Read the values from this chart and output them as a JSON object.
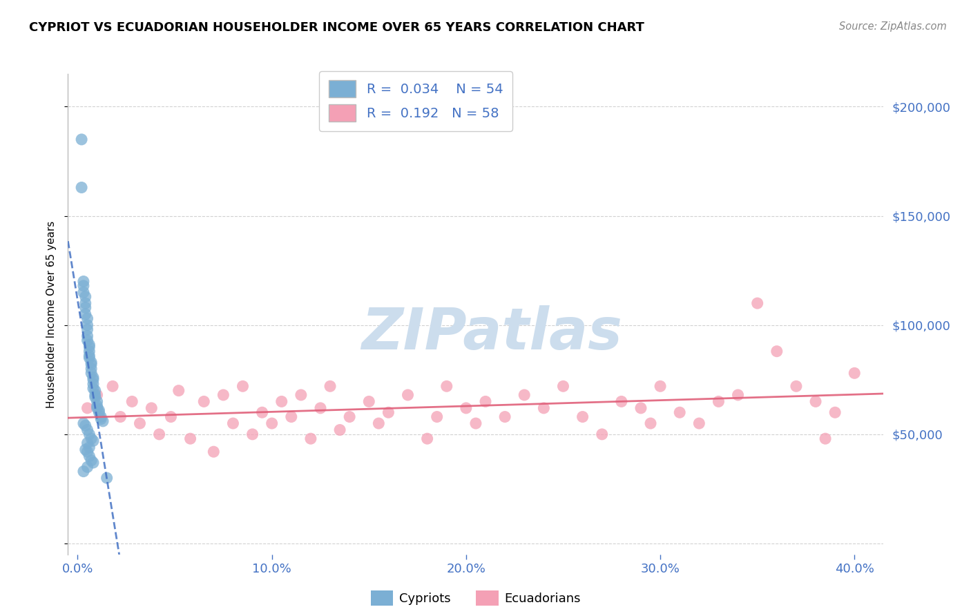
{
  "title": "CYPRIOT VS ECUADORIAN HOUSEHOLDER INCOME OVER 65 YEARS CORRELATION CHART",
  "source": "Source: ZipAtlas.com",
  "ylabel": "Householder Income Over 65 years",
  "yticks": [
    0,
    50000,
    100000,
    150000,
    200000
  ],
  "ytick_labels": [
    "",
    "$50,000",
    "$100,000",
    "$150,000",
    "$200,000"
  ],
  "ylim": [
    -5000,
    215000
  ],
  "xlim": [
    -0.5,
    41.5
  ],
  "xticks": [
    0,
    10,
    20,
    30,
    40
  ],
  "xtick_labels": [
    "0.0%",
    "10.0%",
    "20.0%",
    "30.0%",
    "40.0%"
  ],
  "cypriot_R": "0.034",
  "cypriot_N": "54",
  "ecuadorian_R": "0.192",
  "ecuadorian_N": "58",
  "cypriot_color": "#7bafd4",
  "ecuadorian_color": "#f4a0b5",
  "cypriot_line_color": "#4472c4",
  "ecuadorian_line_color": "#e0607a",
  "label_color": "#4472c4",
  "watermark_color": "#ccdded",
  "background_color": "#ffffff",
  "cypriot_x": [
    0.2,
    0.2,
    0.3,
    0.3,
    0.3,
    0.4,
    0.4,
    0.4,
    0.4,
    0.5,
    0.5,
    0.5,
    0.5,
    0.5,
    0.6,
    0.6,
    0.6,
    0.6,
    0.6,
    0.7,
    0.7,
    0.7,
    0.7,
    0.8,
    0.8,
    0.8,
    0.8,
    0.9,
    0.9,
    0.9,
    1.0,
    1.0,
    1.0,
    1.1,
    1.1,
    1.2,
    1.2,
    1.3,
    0.3,
    0.4,
    0.5,
    0.6,
    0.7,
    0.8,
    0.5,
    0.6,
    0.4,
    0.5,
    0.6,
    0.7,
    0.8,
    0.5,
    0.3,
    1.5
  ],
  "cypriot_y": [
    185000,
    163000,
    120000,
    118000,
    115000,
    113000,
    110000,
    108000,
    105000,
    103000,
    100000,
    98000,
    95000,
    93000,
    91000,
    90000,
    88000,
    86000,
    85000,
    83000,
    82000,
    80000,
    78000,
    76000,
    75000,
    73000,
    71000,
    70000,
    68000,
    67000,
    65000,
    63000,
    62000,
    61000,
    60000,
    58000,
    57000,
    56000,
    55000,
    54000,
    52000,
    50000,
    48000,
    47000,
    46000,
    44000,
    43000,
    42000,
    40000,
    38000,
    37000,
    35000,
    33000,
    30000
  ],
  "ecuadorian_x": [
    0.5,
    1.0,
    1.8,
    2.2,
    2.8,
    3.2,
    3.8,
    4.2,
    4.8,
    5.2,
    5.8,
    6.5,
    7.0,
    7.5,
    8.0,
    8.5,
    9.0,
    9.5,
    10.0,
    10.5,
    11.0,
    11.5,
    12.0,
    12.5,
    13.0,
    13.5,
    14.0,
    15.0,
    15.5,
    16.0,
    17.0,
    18.0,
    18.5,
    19.0,
    20.0,
    20.5,
    21.0,
    22.0,
    23.0,
    24.0,
    25.0,
    26.0,
    27.0,
    28.0,
    29.0,
    30.0,
    31.0,
    32.0,
    33.0,
    34.0,
    35.0,
    36.0,
    37.0,
    38.0,
    39.0,
    40.0,
    38.5,
    29.5
  ],
  "ecuadorian_y": [
    62000,
    68000,
    72000,
    58000,
    65000,
    55000,
    62000,
    50000,
    58000,
    70000,
    48000,
    65000,
    42000,
    68000,
    55000,
    72000,
    50000,
    60000,
    55000,
    65000,
    58000,
    68000,
    48000,
    62000,
    72000,
    52000,
    58000,
    65000,
    55000,
    60000,
    68000,
    48000,
    58000,
    72000,
    62000,
    55000,
    65000,
    58000,
    68000,
    62000,
    72000,
    58000,
    50000,
    65000,
    62000,
    72000,
    60000,
    55000,
    65000,
    68000,
    110000,
    88000,
    72000,
    65000,
    60000,
    78000,
    48000,
    55000
  ]
}
